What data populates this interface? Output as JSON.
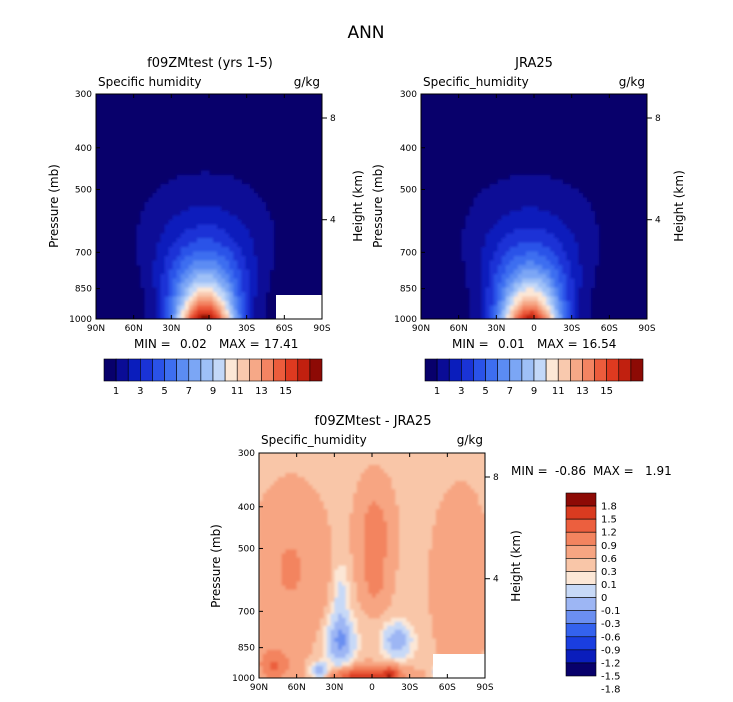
{
  "figure": {
    "title": "ANN"
  },
  "colors": {
    "humidity": [
      "#08006b",
      "#0a0c96",
      "#0a1dbc",
      "#1a33d6",
      "#2a52e8",
      "#3d6ef0",
      "#5b8cf3",
      "#7ba6f5",
      "#9ec0f7",
      "#c3d8f8",
      "#fce7d6",
      "#f9c9ae",
      "#f6a887",
      "#f38462",
      "#ec5c3c",
      "#de3a20",
      "#c1200f",
      "#8d0a05"
    ],
    "diff": [
      "#08006b",
      "#0a1dbc",
      "#1a3ee0",
      "#3462ee",
      "#6b8ff1",
      "#9db6f4",
      "#c7d9f7",
      "#fce7d6",
      "#f9c6a8",
      "#f7a582",
      "#f3845f",
      "#ec5f3e",
      "#d93b20",
      "#8d0a05"
    ]
  },
  "chart_data": [
    {
      "type": "heatmap",
      "id": "model",
      "title": "f09ZMtest (yrs 1-5)",
      "subtitle_left": "Specific humidity",
      "subtitle_right": "g/kg",
      "xlabel": "",
      "ylabel": "Pressure (mb)",
      "ylabel_right": "Height (km)",
      "x_ticks": [
        "90N",
        "60N",
        "30N",
        "0",
        "30S",
        "60S",
        "90S"
      ],
      "y_ticks": [
        "300",
        "400",
        "500",
        "700",
        "850",
        "1000"
      ],
      "y_tick_values": [
        300,
        400,
        500,
        700,
        850,
        1000
      ],
      "right_ticks": [
        "8",
        "4"
      ],
      "right_tick_heights_km": [
        8,
        4
      ],
      "xlim": [
        90,
        -90
      ],
      "ylim": [
        1000,
        300
      ],
      "y_scale": "log",
      "min_label": "MIN =",
      "min_value": "0.02",
      "max_label": "MAX =",
      "max_value": "17.41",
      "peak_value": 17.41,
      "peak_latitude": 3,
      "colorbar_labels": [
        "1",
        "3",
        "5",
        "7",
        "9",
        "11",
        "13",
        "15"
      ],
      "masked_region": "lower-right corner"
    },
    {
      "type": "heatmap",
      "id": "obs",
      "title": "JRA25",
      "subtitle_left": "Specific_humidity",
      "subtitle_right": "g/kg",
      "xlabel": "",
      "ylabel": "Pressure (mb)",
      "ylabel_right": "Height (km)",
      "x_ticks": [
        "90N",
        "60N",
        "30N",
        "0",
        "30S",
        "60S",
        "90S"
      ],
      "y_ticks": [
        "300",
        "400",
        "500",
        "700",
        "850",
        "1000"
      ],
      "y_tick_values": [
        300,
        400,
        500,
        700,
        850,
        1000
      ],
      "right_ticks": [
        "8",
        "4"
      ],
      "right_tick_heights_km": [
        8,
        4
      ],
      "xlim": [
        90,
        -90
      ],
      "ylim": [
        1000,
        300
      ],
      "y_scale": "log",
      "min_label": "MIN =",
      "min_value": "0.01",
      "max_label": "MAX =",
      "max_value": "16.54",
      "peak_value": 16.54,
      "peak_latitude": 3,
      "colorbar_labels": [
        "1",
        "3",
        "5",
        "7",
        "9",
        "11",
        "13",
        "15"
      ]
    },
    {
      "type": "heatmap",
      "id": "diff",
      "title": "f09ZMtest - JRA25",
      "subtitle_left": "Specific_humidity",
      "subtitle_right": "g/kg",
      "xlabel": "",
      "ylabel": "Pressure (mb)",
      "ylabel_right": "Height (km)",
      "x_ticks": [
        "90N",
        "60N",
        "30N",
        "0",
        "30S",
        "60S",
        "90S"
      ],
      "y_ticks": [
        "300",
        "400",
        "500",
        "700",
        "850",
        "1000"
      ],
      "y_tick_values": [
        300,
        400,
        500,
        700,
        850,
        1000
      ],
      "right_ticks": [
        "8",
        "4"
      ],
      "right_tick_heights_km": [
        8,
        4
      ],
      "xlim": [
        90,
        -90
      ],
      "ylim": [
        1000,
        300
      ],
      "y_scale": "log",
      "min_label": "MIN =",
      "min_value": "-0.86",
      "max_label": "MAX =",
      "max_value": "1.91",
      "colorbar_labels": [
        "1.8",
        "1.5",
        "1.2",
        "0.9",
        "0.6",
        "0.3",
        "0.1",
        "0",
        "-0.1",
        "-0.3",
        "-0.6",
        "-0.9",
        "-1.2",
        "-1.5",
        "-1.8"
      ],
      "masked_region": "lower-right corner"
    }
  ]
}
